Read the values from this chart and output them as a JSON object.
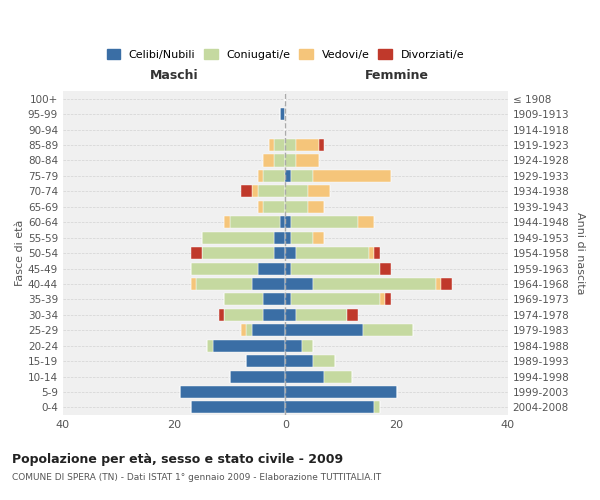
{
  "age_groups": [
    "0-4",
    "5-9",
    "10-14",
    "15-19",
    "20-24",
    "25-29",
    "30-34",
    "35-39",
    "40-44",
    "45-49",
    "50-54",
    "55-59",
    "60-64",
    "65-69",
    "70-74",
    "75-79",
    "80-84",
    "85-89",
    "90-94",
    "95-99",
    "100+"
  ],
  "birth_years": [
    "2004-2008",
    "1999-2003",
    "1994-1998",
    "1989-1993",
    "1984-1988",
    "1979-1983",
    "1974-1978",
    "1969-1973",
    "1964-1968",
    "1959-1963",
    "1954-1958",
    "1949-1953",
    "1944-1948",
    "1939-1943",
    "1934-1938",
    "1929-1933",
    "1924-1928",
    "1919-1923",
    "1914-1918",
    "1909-1913",
    "≤ 1908"
  ],
  "maschi": {
    "celibi": [
      17,
      19,
      10,
      7,
      13,
      6,
      4,
      4,
      6,
      5,
      2,
      2,
      1,
      0,
      0,
      0,
      0,
      0,
      0,
      1,
      0
    ],
    "coniugati": [
      0,
      0,
      0,
      0,
      1,
      1,
      7,
      7,
      10,
      12,
      13,
      13,
      9,
      4,
      5,
      4,
      2,
      2,
      0,
      0,
      0
    ],
    "vedovi": [
      0,
      0,
      0,
      0,
      0,
      1,
      0,
      0,
      1,
      0,
      0,
      0,
      1,
      1,
      1,
      1,
      2,
      1,
      0,
      0,
      0
    ],
    "divorziati": [
      0,
      0,
      0,
      0,
      0,
      0,
      1,
      0,
      0,
      0,
      2,
      0,
      0,
      0,
      2,
      0,
      0,
      0,
      0,
      0,
      0
    ]
  },
  "femmine": {
    "nubili": [
      16,
      20,
      7,
      5,
      3,
      14,
      2,
      1,
      5,
      1,
      2,
      1,
      1,
      0,
      0,
      1,
      0,
      0,
      0,
      0,
      0
    ],
    "coniugate": [
      1,
      0,
      5,
      4,
      2,
      9,
      9,
      16,
      22,
      16,
      13,
      4,
      12,
      4,
      4,
      4,
      2,
      2,
      0,
      0,
      0
    ],
    "vedove": [
      0,
      0,
      0,
      0,
      0,
      0,
      0,
      1,
      1,
      0,
      1,
      2,
      3,
      3,
      4,
      14,
      4,
      4,
      0,
      0,
      0
    ],
    "divorziate": [
      0,
      0,
      0,
      0,
      0,
      0,
      2,
      1,
      2,
      2,
      1,
      0,
      0,
      0,
      0,
      0,
      0,
      1,
      0,
      0,
      0
    ]
  },
  "colors": {
    "celibi_nubili": "#3a6ea5",
    "coniugati": "#c5d9a0",
    "vedovi": "#f5c57a",
    "divorziati": "#c0392b"
  },
  "xlim": 40,
  "title": "Popolazione per età, sesso e stato civile - 2009",
  "subtitle": "COMUNE DI SPERA (TN) - Dati ISTAT 1° gennaio 2009 - Elaborazione TUTTITALIA.IT",
  "ylabel_left": "Fasce di età",
  "ylabel_right": "Anni di nascita",
  "xlabel_maschi": "Maschi",
  "xlabel_femmine": "Femmine",
  "background_color": "#ffffff",
  "grid_color": "#cccccc"
}
